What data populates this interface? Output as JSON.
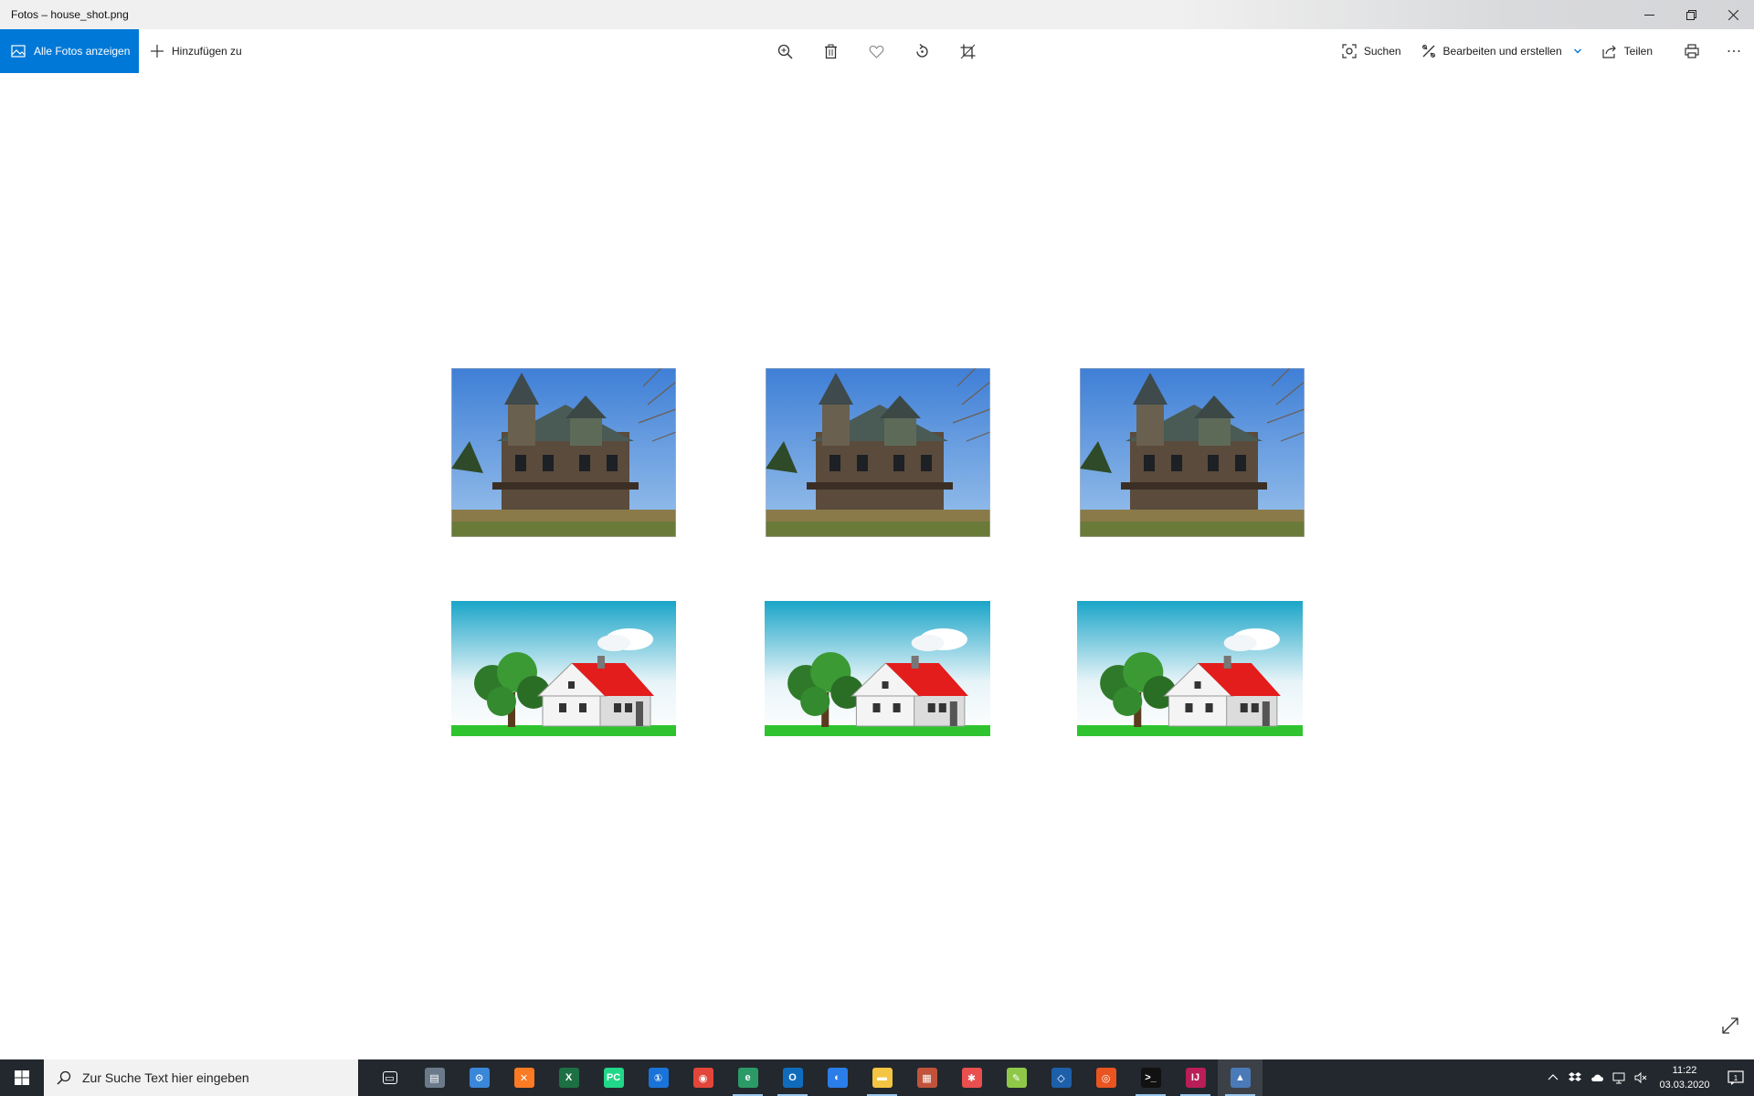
{
  "window": {
    "title": "Fotos – house_shot.png"
  },
  "toolbar": {
    "all_photos_label": "Alle Fotos anzeigen",
    "add_to_label": "Hinzufügen zu",
    "search_label": "Suchen",
    "edit_create_label": "Bearbeiten und erstellen",
    "share_label": "Teilen"
  },
  "gallery": {
    "rows": [
      {
        "image": "victorian-house-photo",
        "count": 3
      },
      {
        "image": "cartoon-house-illustration",
        "count": 3
      }
    ]
  },
  "taskbar": {
    "search_placeholder": "Zur Suche Text hier eingeben",
    "apps": [
      {
        "name": "task-view-icon",
        "color": "#23282e"
      },
      {
        "name": "file-manager-icon",
        "color": "#6a7a8a"
      },
      {
        "name": "app-blue-gear-icon",
        "color": "#3a86d8"
      },
      {
        "name": "xampp-icon",
        "color": "#fb7a24"
      },
      {
        "name": "excel-icon",
        "color": "#1d7044"
      },
      {
        "name": "pycharm-icon",
        "color": "#21d789"
      },
      {
        "name": "1password-icon",
        "color": "#1a73d9"
      },
      {
        "name": "chrome-icon",
        "color": "#e2463a"
      },
      {
        "name": "edge-icon",
        "color": "#2b9a66"
      },
      {
        "name": "outlook-icon",
        "color": "#0f6cbd"
      },
      {
        "name": "github-icon",
        "color": "#2b7de9"
      },
      {
        "name": "file-explorer-icon",
        "color": "#f4c542"
      },
      {
        "name": "app-calendar-icon",
        "color": "#c0533a"
      },
      {
        "name": "xmind-icon",
        "color": "#e94f4f"
      },
      {
        "name": "notepad-plus-icon",
        "color": "#8fc848"
      },
      {
        "name": "virtualbox-icon",
        "color": "#1d5fa8"
      },
      {
        "name": "ubuntu-icon",
        "color": "#e95420"
      },
      {
        "name": "terminal-icon",
        "color": "#111111"
      },
      {
        "name": "intellij-icon",
        "color": "#b91e57"
      },
      {
        "name": "photos-icon",
        "color": "#4a7ab8"
      }
    ],
    "time": "11:22",
    "date": "03.03.2020",
    "notification_count": "1"
  },
  "colors": {
    "accent": "#0078d7",
    "taskbar_bg": "#23282e"
  }
}
